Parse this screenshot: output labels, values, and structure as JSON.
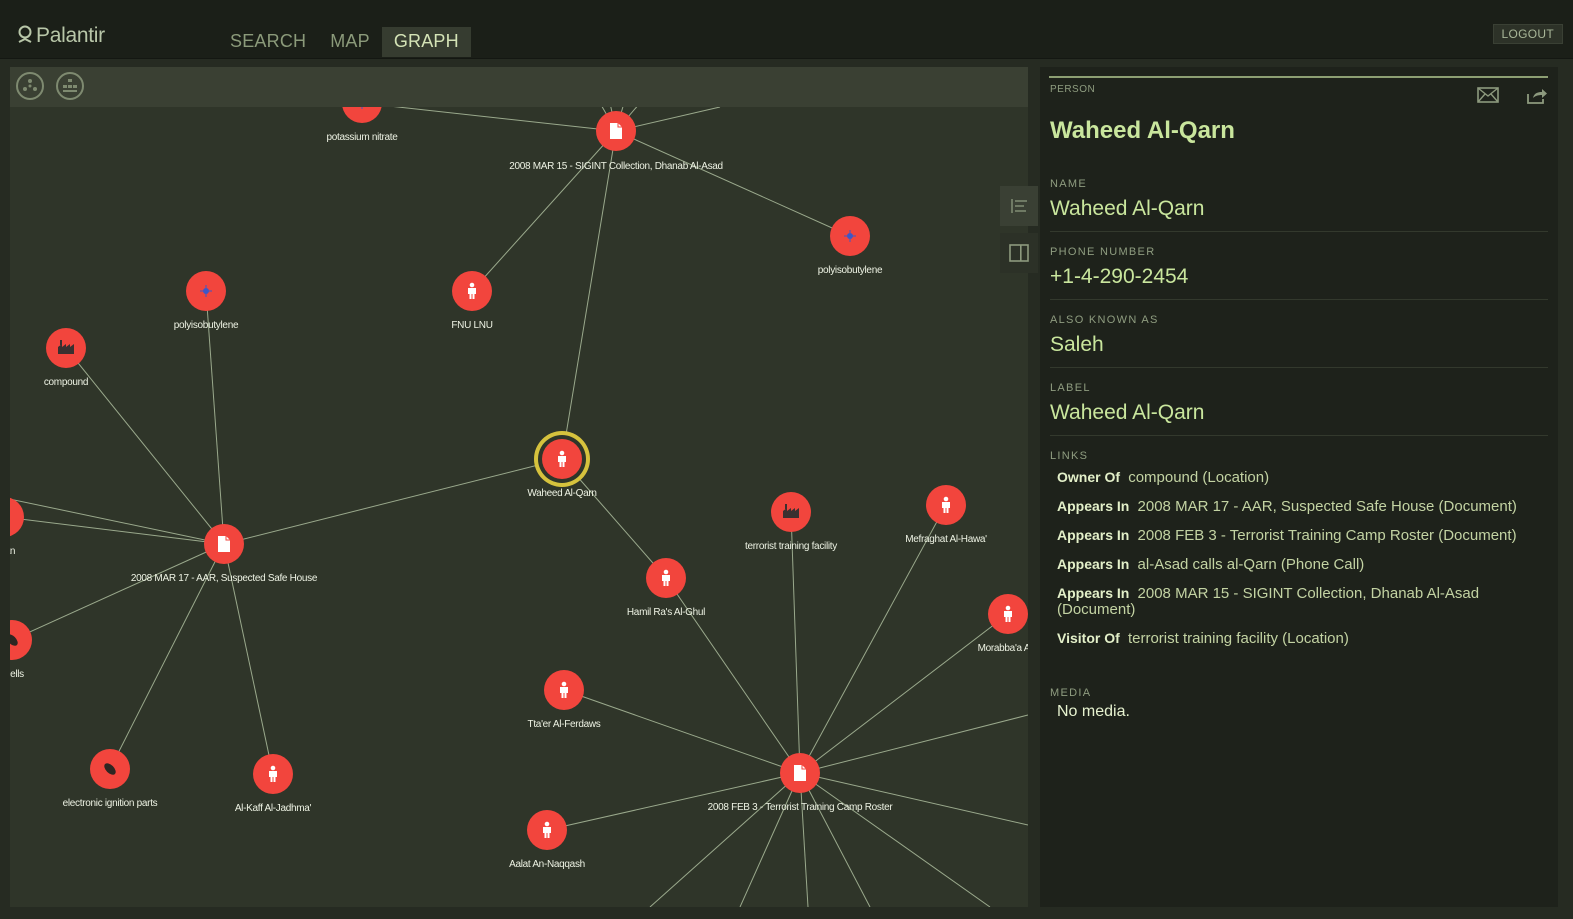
{
  "app": {
    "logo_text": "Palantir",
    "nav_tabs": [
      "SEARCH",
      "MAP",
      "GRAPH"
    ],
    "active_tab": "GRAPH",
    "logout_label": "LOGOUT"
  },
  "graph": {
    "toolbar": {
      "layout_icon": "network-layout-icon",
      "hierarchy_icon": "hierarchy-layout-icon"
    },
    "colors": {
      "node": "#f2453d",
      "edge": "#9aa98c",
      "selected_ring": "#d6c23d",
      "background": "#2f3529"
    },
    "nodes": [
      {
        "id": "n_potassium",
        "label": "potassium nitrate",
        "type": "chemical"
      },
      {
        "id": "n_sigint",
        "label": "2008 MAR 15 - SIGINT Collection, Dhanab Al-Asad",
        "type": "document"
      },
      {
        "id": "n_polyA",
        "label": "polyisobutylene",
        "type": "chemical"
      },
      {
        "id": "n_polyB",
        "label": "polyisobutylene",
        "type": "chemical"
      },
      {
        "id": "n_fnu",
        "label": "FNU LNU",
        "type": "person"
      },
      {
        "id": "n_compound",
        "label": "compound",
        "type": "location"
      },
      {
        "id": "n_waheed",
        "label": "Waheed Al-Qarn",
        "type": "person",
        "selected": true
      },
      {
        "id": "n_iinan",
        "label": "-'inan",
        "type": "person"
      },
      {
        "id": "n_safehouse",
        "label": "2008 MAR 17 - AAR, Suspected Safe House",
        "type": "document"
      },
      {
        "id": "n_camp",
        "label": "terrorist training facility",
        "type": "location"
      },
      {
        "id": "n_mefraghat",
        "label": "Mefraghat Al-Hawa'",
        "type": "person"
      },
      {
        "id": "n_hamil",
        "label": "Hamil Ra's Al-Ghul",
        "type": "person"
      },
      {
        "id": "n_morabba",
        "label": "Morabba'a An-",
        "type": "person"
      },
      {
        "id": "n_shells",
        "label": "shells",
        "type": "weapon"
      },
      {
        "id": "n_ttaer",
        "label": "Tta'er Al-Ferdaws",
        "type": "person"
      },
      {
        "id": "n_ignition",
        "label": "electronic ignition parts",
        "type": "weapon"
      },
      {
        "id": "n_alkaff",
        "label": "Al-Kaff Al-Jadhma'",
        "type": "person"
      },
      {
        "id": "n_roster",
        "label": "2008 FEB 3 - Terrorist Training Camp Roster",
        "type": "document"
      },
      {
        "id": "n_aalat",
        "label": "Aalat An-Naqqash",
        "type": "person"
      }
    ],
    "edges": [
      [
        "n_potassium",
        "n_sigint"
      ],
      [
        "n_sigint",
        "n_polyB"
      ],
      [
        "n_sigint",
        "n_fnu"
      ],
      [
        "n_sigint",
        "n_waheed"
      ],
      [
        "n_polyA",
        "n_safehouse"
      ],
      [
        "n_compound",
        "n_safehouse"
      ],
      [
        "n_iinan",
        "n_safehouse"
      ],
      [
        "n_waheed",
        "n_safehouse"
      ],
      [
        "n_shells",
        "n_safehouse"
      ],
      [
        "n_safehouse",
        "n_ignition"
      ],
      [
        "n_safehouse",
        "n_alkaff"
      ],
      [
        "n_waheed",
        "n_hamil"
      ],
      [
        "n_hamil",
        "n_roster"
      ],
      [
        "n_camp",
        "n_roster"
      ],
      [
        "n_mefraghat",
        "n_roster"
      ],
      [
        "n_morabba",
        "n_roster"
      ],
      [
        "n_ttaer",
        "n_roster"
      ],
      [
        "n_aalat",
        "n_roster"
      ]
    ]
  },
  "side_tabs": [
    {
      "icon": "list-align-icon",
      "active": false
    },
    {
      "icon": "panel-view-icon",
      "active": true
    }
  ],
  "panel": {
    "type_label": "PERSON",
    "title": "Waheed Al-Qarn",
    "icons": {
      "email": "email-icon",
      "share": "share-icon"
    },
    "fields": [
      {
        "label": "NAME",
        "value": "Waheed Al-Qarn"
      },
      {
        "label": "PHONE NUMBER",
        "value": "+1-4-290-2454"
      },
      {
        "label": "ALSO KNOWN AS",
        "value": "Saleh"
      },
      {
        "label": "LABEL",
        "value": "Waheed Al-Qarn"
      }
    ],
    "links_label": "LINKS",
    "links": [
      {
        "relation": "Owner Of",
        "target": "compound (Location)"
      },
      {
        "relation": "Appears In",
        "target": "2008 MAR 17 - AAR, Suspected Safe House (Document)"
      },
      {
        "relation": "Appears In",
        "target": "2008 FEB 3 - Terrorist Training Camp Roster (Document)"
      },
      {
        "relation": "Appears In",
        "target": "al-Asad calls al-Qarn (Phone Call)"
      },
      {
        "relation": "Appears In",
        "target": "2008 MAR 15 - SIGINT Collection, Dhanab Al-Asad (Document)"
      },
      {
        "relation": "Visitor Of",
        "target": "terrorist training facility (Location)"
      }
    ],
    "media_label": "MEDIA",
    "media_value": "No media."
  }
}
